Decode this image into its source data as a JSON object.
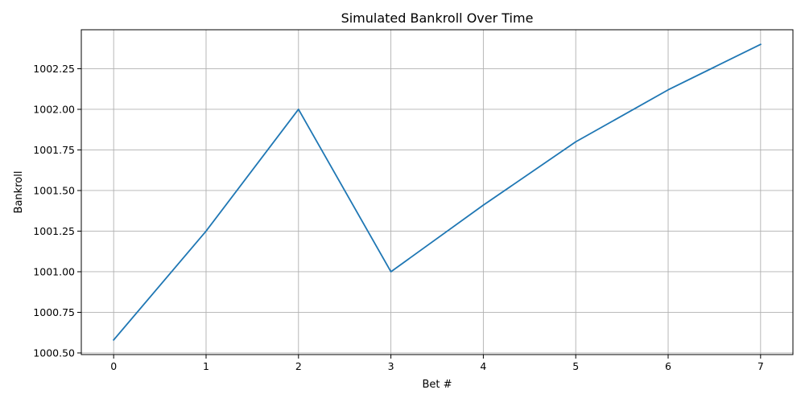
{
  "chart_data": {
    "type": "line",
    "title": "Simulated Bankroll Over Time",
    "xlabel": "Bet #",
    "ylabel": "Bankroll",
    "x": [
      0,
      1,
      2,
      3,
      4,
      5,
      6,
      7
    ],
    "series": [
      {
        "values": [
          1000.58,
          1001.25,
          1002.0,
          1001.0,
          1001.41,
          1001.8,
          1002.12,
          1002.4
        ],
        "color": "#1f77b4"
      }
    ],
    "xlim": [
      -0.35,
      7.35
    ],
    "ylim": [
      1000.49,
      1002.49
    ],
    "xticks": [
      "0",
      "1",
      "2",
      "3",
      "4",
      "5",
      "6",
      "7"
    ],
    "yticks": [
      "1000.50",
      "1000.75",
      "1001.00",
      "1001.25",
      "1001.50",
      "1001.75",
      "1002.00",
      "1002.25"
    ],
    "grid": true,
    "legend": "none"
  }
}
